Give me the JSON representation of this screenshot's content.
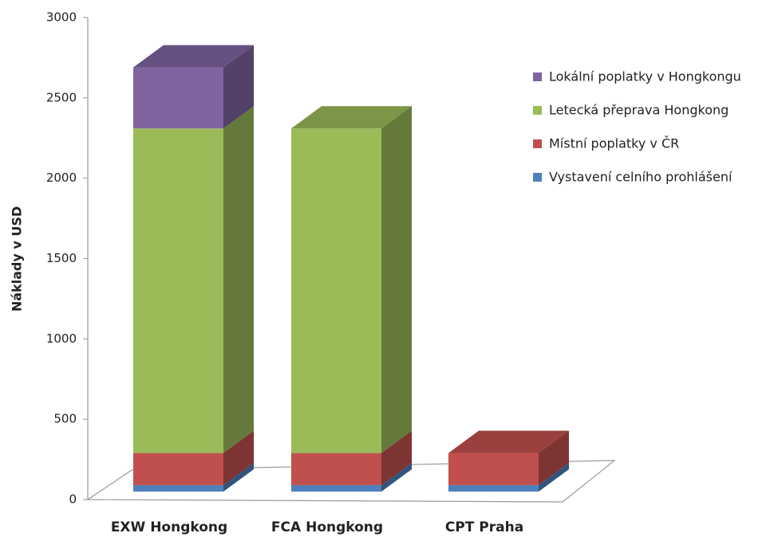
{
  "chart_data": {
    "type": "bar3d_stacked",
    "y_label": "Náklady v USD",
    "categories": [
      "EXW Hongkong",
      "FCA Hongkong",
      "CPT Praha"
    ],
    "series": [
      {
        "name": "Vystavení celního prohlášení",
        "color": "#4f81bd",
        "values": [
          40,
          40,
          40
        ]
      },
      {
        "name": "Místní poplatky v ČR",
        "color": "#c0504d",
        "values": [
          200,
          200,
          200
        ]
      },
      {
        "name": "Letecká přeprava Hongkong",
        "color": "#9bbb59",
        "values": [
          2020,
          2020,
          0
        ]
      },
      {
        "name": "Lokální poplatky v Hongkongu",
        "color": "#8064a2",
        "values": [
          380,
          0,
          0
        ]
      }
    ],
    "ylim": [
      0,
      3000
    ],
    "yticks": [
      0,
      500,
      1000,
      1500,
      2000,
      2500,
      3000
    ]
  }
}
